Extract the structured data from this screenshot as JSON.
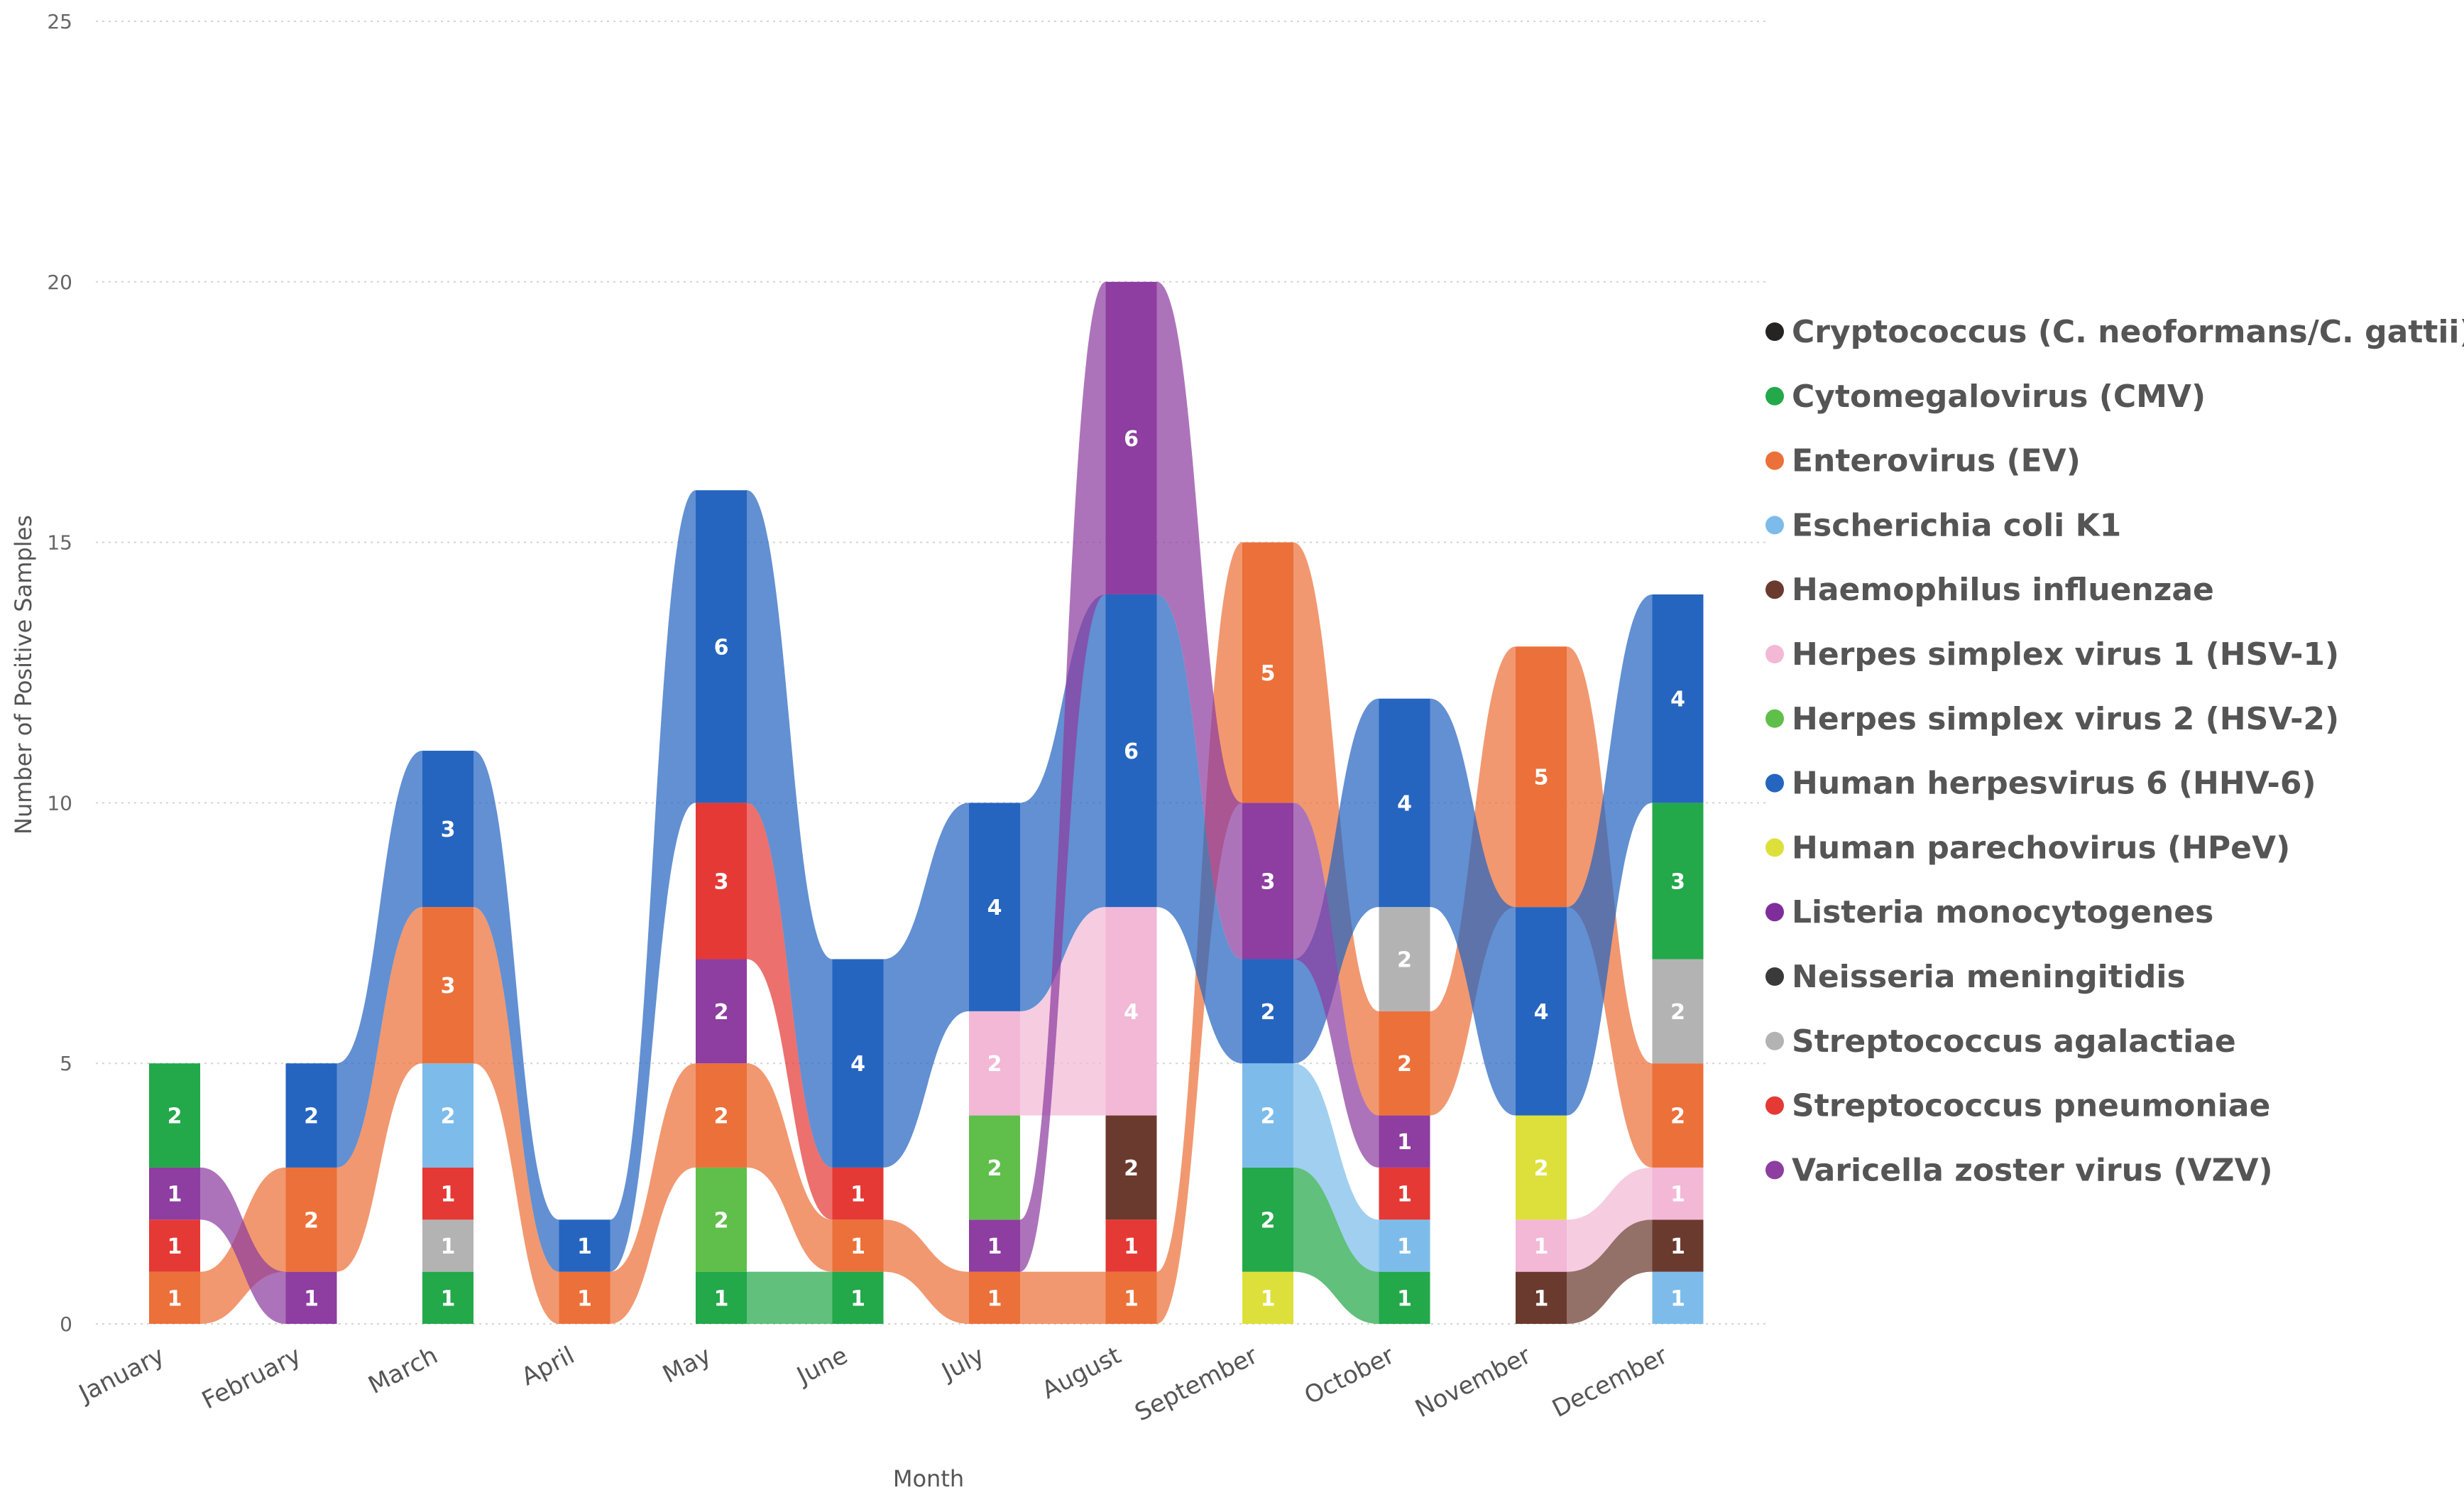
{
  "chart_data": {
    "type": "ribbon",
    "title": "",
    "xlabel": "Month",
    "ylabel": "Number of Positive Samples",
    "ylim": [
      0,
      25
    ],
    "yticks": [
      "0",
      "5",
      "10",
      "15",
      "20",
      "25"
    ],
    "categories": [
      "January",
      "February",
      "March",
      "April",
      "May",
      "June",
      "July",
      "August",
      "September",
      "October",
      "November",
      "December"
    ],
    "legend": [
      {
        "name": "Cryptococcus (C. neoformans/C. gattii)",
        "color": "#252423"
      },
      {
        "name": "Cytomegalovirus (CMV)",
        "color": "#23A84A"
      },
      {
        "name": "Enterovirus (EV)",
        "color": "#EC7039"
      },
      {
        "name": "Escherichia coli K1",
        "color": "#7DBCEA"
      },
      {
        "name": "Haemophilus influenzae",
        "color": "#6B3A2E"
      },
      {
        "name": "Herpes simplex virus 1 (HSV-1)",
        "color": "#F2B8D6"
      },
      {
        "name": "Herpes simplex virus 2 (HSV-2)",
        "color": "#5FBF4A"
      },
      {
        "name": "Human herpesvirus 6 (HHV-6)",
        "color": "#2565C0"
      },
      {
        "name": "Human parechovirus (HPeV)",
        "color": "#DDE03A"
      },
      {
        "name": "Listeria monocytogenes",
        "color": "#7F2D9B"
      },
      {
        "name": "Neisseria meningitidis",
        "color": "#3A3A3A"
      },
      {
        "name": "Streptococcus agalactiae",
        "color": "#B3B3B3"
      },
      {
        "name": "Streptococcus pneumoniae",
        "color": "#E53935"
      },
      {
        "name": "Varicella zoster virus (VZV)",
        "color": "#8E3DA0"
      }
    ],
    "stacks": [
      [
        {
          "name": "Enterovirus (EV)",
          "value": 1
        },
        {
          "name": "Streptococcus pneumoniae",
          "value": 1
        },
        {
          "name": "Varicella zoster virus (VZV)",
          "value": 1
        },
        {
          "name": "Cytomegalovirus (CMV)",
          "value": 2
        }
      ],
      [
        {
          "name": "Varicella zoster virus (VZV)",
          "value": 1
        },
        {
          "name": "Enterovirus (EV)",
          "value": 2
        },
        {
          "name": "Human herpesvirus 6 (HHV-6)",
          "value": 2
        }
      ],
      [
        {
          "name": "Cytomegalovirus (CMV)",
          "value": 1
        },
        {
          "name": "Streptococcus agalactiae",
          "value": 1
        },
        {
          "name": "Streptococcus pneumoniae",
          "value": 1
        },
        {
          "name": "Escherichia coli K1",
          "value": 2
        },
        {
          "name": "Enterovirus (EV)",
          "value": 3
        },
        {
          "name": "Human herpesvirus 6 (HHV-6)",
          "value": 3
        }
      ],
      [
        {
          "name": "Enterovirus (EV)",
          "value": 1
        },
        {
          "name": "Human herpesvirus 6 (HHV-6)",
          "value": 1
        }
      ],
      [
        {
          "name": "Cytomegalovirus (CMV)",
          "value": 1
        },
        {
          "name": "Herpes simplex virus 2 (HSV-2)",
          "value": 2
        },
        {
          "name": "Enterovirus (EV)",
          "value": 2
        },
        {
          "name": "Varicella zoster virus (VZV)",
          "value": 2
        },
        {
          "name": "Streptococcus pneumoniae",
          "value": 3
        },
        {
          "name": "Human herpesvirus 6 (HHV-6)",
          "value": 6
        }
      ],
      [
        {
          "name": "Cytomegalovirus (CMV)",
          "value": 1
        },
        {
          "name": "Enterovirus (EV)",
          "value": 1
        },
        {
          "name": "Streptococcus pneumoniae",
          "value": 1
        },
        {
          "name": "Human herpesvirus 6 (HHV-6)",
          "value": 4
        }
      ],
      [
        {
          "name": "Enterovirus (EV)",
          "value": 1
        },
        {
          "name": "Varicella zoster virus (VZV)",
          "value": 1
        },
        {
          "name": "Herpes simplex virus 2 (HSV-2)",
          "value": 2
        },
        {
          "name": "Herpes simplex virus 1 (HSV-1)",
          "value": 2
        },
        {
          "name": "Human herpesvirus 6 (HHV-6)",
          "value": 4
        }
      ],
      [
        {
          "name": "Enterovirus (EV)",
          "value": 1
        },
        {
          "name": "Streptococcus pneumoniae",
          "value": 1
        },
        {
          "name": "Haemophilus influenzae",
          "value": 2
        },
        {
          "name": "Herpes simplex virus 1 (HSV-1)",
          "value": 4
        },
        {
          "name": "Human herpesvirus 6 (HHV-6)",
          "value": 6
        },
        {
          "name": "Varicella zoster virus (VZV)",
          "value": 6
        }
      ],
      [
        {
          "name": "Human parechovirus (HPeV)",
          "value": 1
        },
        {
          "name": "Cytomegalovirus (CMV)",
          "value": 2
        },
        {
          "name": "Escherichia coli K1",
          "value": 2
        },
        {
          "name": "Human herpesvirus 6 (HHV-6)",
          "value": 2
        },
        {
          "name": "Varicella zoster virus (VZV)",
          "value": 3
        },
        {
          "name": "Enterovirus (EV)",
          "value": 5
        }
      ],
      [
        {
          "name": "Cytomegalovirus (CMV)",
          "value": 1
        },
        {
          "name": "Escherichia coli K1",
          "value": 1
        },
        {
          "name": "Streptococcus pneumoniae",
          "value": 1
        },
        {
          "name": "Varicella zoster virus (VZV)",
          "value": 1
        },
        {
          "name": "Enterovirus (EV)",
          "value": 2
        },
        {
          "name": "Streptococcus agalactiae",
          "value": 2
        },
        {
          "name": "Human herpesvirus 6 (HHV-6)",
          "value": 4
        }
      ],
      [
        {
          "name": "Haemophilus influenzae",
          "value": 1
        },
        {
          "name": "Herpes simplex virus 1 (HSV-1)",
          "value": 1
        },
        {
          "name": "Human parechovirus (HPeV)",
          "value": 2
        },
        {
          "name": "Human herpesvirus 6 (HHV-6)",
          "value": 4
        },
        {
          "name": "Enterovirus (EV)",
          "value": 5
        }
      ],
      [
        {
          "name": "Escherichia coli K1",
          "value": 1
        },
        {
          "name": "Haemophilus influenzae",
          "value": 1
        },
        {
          "name": "Herpes simplex virus 1 (HSV-1)",
          "value": 1
        },
        {
          "name": "Enterovirus (EV)",
          "value": 2
        },
        {
          "name": "Streptococcus agalactiae",
          "value": 2
        },
        {
          "name": "Cytomegalovirus (CMV)",
          "value": 3
        },
        {
          "name": "Human herpesvirus 6 (HHV-6)",
          "value": 4
        }
      ]
    ]
  }
}
